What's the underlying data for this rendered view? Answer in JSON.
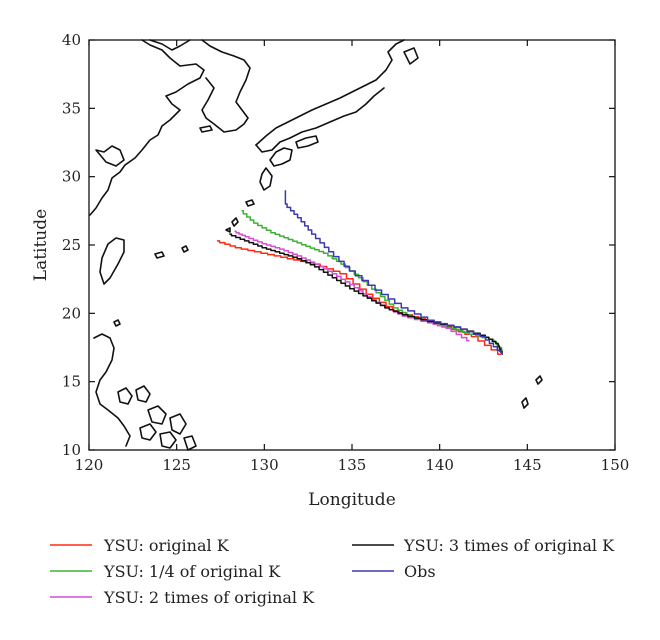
{
  "chart_data": {
    "type": "line",
    "title": "",
    "xlabel": "Longitude",
    "ylabel": "Latitude",
    "xlim": [
      120,
      150
    ],
    "ylim": [
      10,
      40
    ],
    "x_ticks": [
      120,
      125,
      130,
      135,
      140,
      145,
      150
    ],
    "y_ticks": [
      10,
      15,
      20,
      25,
      30,
      35,
      40
    ],
    "grid": false,
    "legend_position": "bottom",
    "series": [
      {
        "name": "YSU: original K",
        "color": "#ff2a10",
        "points": [
          [
            127.3,
            25.3
          ],
          [
            128.5,
            24.8
          ],
          [
            130.0,
            24.4
          ],
          [
            131.5,
            24.0
          ],
          [
            133.0,
            23.6
          ],
          [
            134.5,
            22.9
          ],
          [
            136.0,
            21.4
          ],
          [
            137.5,
            20.2
          ],
          [
            139.0,
            19.6
          ],
          [
            140.5,
            19.0
          ],
          [
            142.0,
            18.3
          ],
          [
            143.5,
            17.0
          ]
        ]
      },
      {
        "name": "YSU: 1/4 of original K",
        "color": "#3fb034",
        "points": [
          [
            128.7,
            27.5
          ],
          [
            129.5,
            26.6
          ],
          [
            130.5,
            25.9
          ],
          [
            131.5,
            25.4
          ],
          [
            132.5,
            24.9
          ],
          [
            133.5,
            24.4
          ],
          [
            134.5,
            23.6
          ],
          [
            135.5,
            22.6
          ],
          [
            136.5,
            21.5
          ],
          [
            137.5,
            20.4
          ],
          [
            138.5,
            19.7
          ],
          [
            140.0,
            19.2
          ],
          [
            141.5,
            18.6
          ],
          [
            143.0,
            18.1
          ],
          [
            143.6,
            17.3
          ]
        ]
      },
      {
        "name": "YSU: 2 times of original K",
        "color": "#d24fd2",
        "points": [
          [
            128.3,
            26.0
          ],
          [
            129.0,
            25.6
          ],
          [
            130.0,
            25.1
          ],
          [
            131.0,
            24.7
          ],
          [
            132.0,
            24.2
          ],
          [
            133.0,
            23.6
          ],
          [
            134.0,
            22.9
          ],
          [
            135.0,
            22.1
          ],
          [
            136.0,
            21.2
          ],
          [
            137.0,
            20.4
          ],
          [
            138.0,
            19.8
          ],
          [
            139.5,
            19.3
          ],
          [
            140.5,
            18.9
          ],
          [
            141.7,
            18.0
          ]
        ]
      },
      {
        "name": "YSU: 3 times of original K",
        "color": "#111111",
        "points": [
          [
            128.0,
            25.8
          ],
          [
            129.0,
            25.3
          ],
          [
            130.0,
            24.8
          ],
          [
            131.0,
            24.4
          ],
          [
            132.0,
            24.0
          ],
          [
            133.0,
            23.4
          ],
          [
            134.0,
            22.6
          ],
          [
            135.0,
            21.8
          ],
          [
            136.0,
            21.1
          ],
          [
            137.0,
            20.4
          ],
          [
            138.0,
            19.9
          ],
          [
            139.5,
            19.4
          ],
          [
            141.0,
            19.0
          ],
          [
            142.5,
            18.4
          ],
          [
            143.3,
            17.8
          ],
          [
            143.6,
            17.0
          ]
        ]
      },
      {
        "name": "Obs",
        "color": "#3a3ab0",
        "points": [
          [
            131.2,
            29.0
          ],
          [
            131.2,
            28.0
          ],
          [
            132.0,
            27.0
          ],
          [
            132.8,
            25.8
          ],
          [
            133.8,
            24.5
          ],
          [
            135.0,
            23.1
          ],
          [
            136.5,
            21.7
          ],
          [
            138.0,
            20.4
          ],
          [
            139.5,
            19.5
          ],
          [
            141.0,
            19.0
          ],
          [
            142.5,
            18.3
          ],
          [
            143.4,
            17.3
          ],
          [
            143.6,
            17.0
          ]
        ]
      }
    ]
  }
}
